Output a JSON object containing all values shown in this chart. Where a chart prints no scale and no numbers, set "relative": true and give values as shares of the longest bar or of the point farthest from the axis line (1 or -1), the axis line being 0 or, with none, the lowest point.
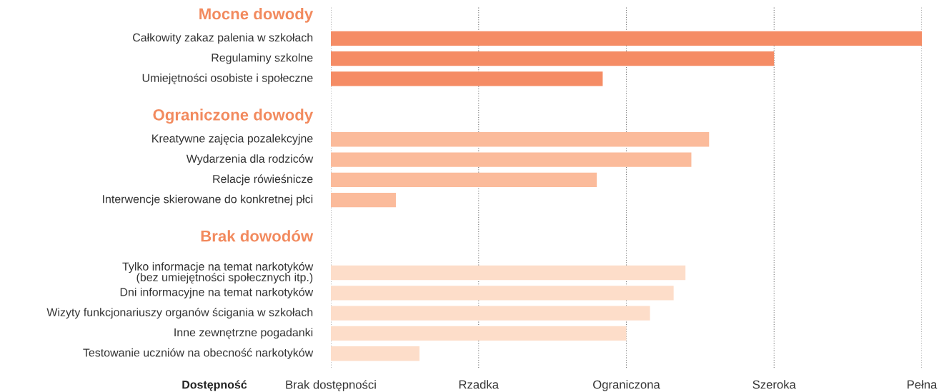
{
  "chart_data": {
    "type": "bar",
    "orientation": "horizontal",
    "relative": true,
    "categories": [
      "Mocne dowody",
      "Całkowity zakaz palenia w szkołach",
      "Regulaminy szkolne",
      "Umiejętności osobiste i społeczne",
      "Ograniczone dowody",
      "Kreatywne zajęcia pozalekcyjne",
      "Wydarzenia dla rodziców",
      "Relacje rówieśnicze",
      "Interwencje skierowane do konkretnej płci",
      "Brak dowodów",
      "Tylko informacje na temat narkotyków\n(bez umiejętności społecznych itp.)",
      "Dni informacyjne na temat narkotyków",
      "Wizyty funkcjonariuszy organów ścigania w szkołach",
      "Inne zewnętrzne pogadanki",
      "Testowanie uczniów na obecność narkotyków"
    ],
    "values": [
      null,
      1.0,
      0.75,
      0.46,
      null,
      0.64,
      0.61,
      0.45,
      0.11,
      null,
      0.6,
      0.58,
      0.54,
      0.5,
      0.15
    ],
    "colors": [
      "#f28a5e",
      "#f58c65",
      "#f58c65",
      "#f58c65",
      "#f28a5e",
      "#fbbb9b",
      "#fbbb9b",
      "#fbbb9b",
      "#fbbb9b",
      "#f28a5e",
      "#fdddc9",
      "#fdddc9",
      "#fdddc9",
      "#fdddc9",
      "#fdddc9"
    ],
    "xlabel": "Dostępność",
    "annotations": [
      "Brak dostępności",
      "Rzadka",
      "Ograniczona",
      "Szeroka",
      "Pełna"
    ],
    "grid": "x"
  }
}
